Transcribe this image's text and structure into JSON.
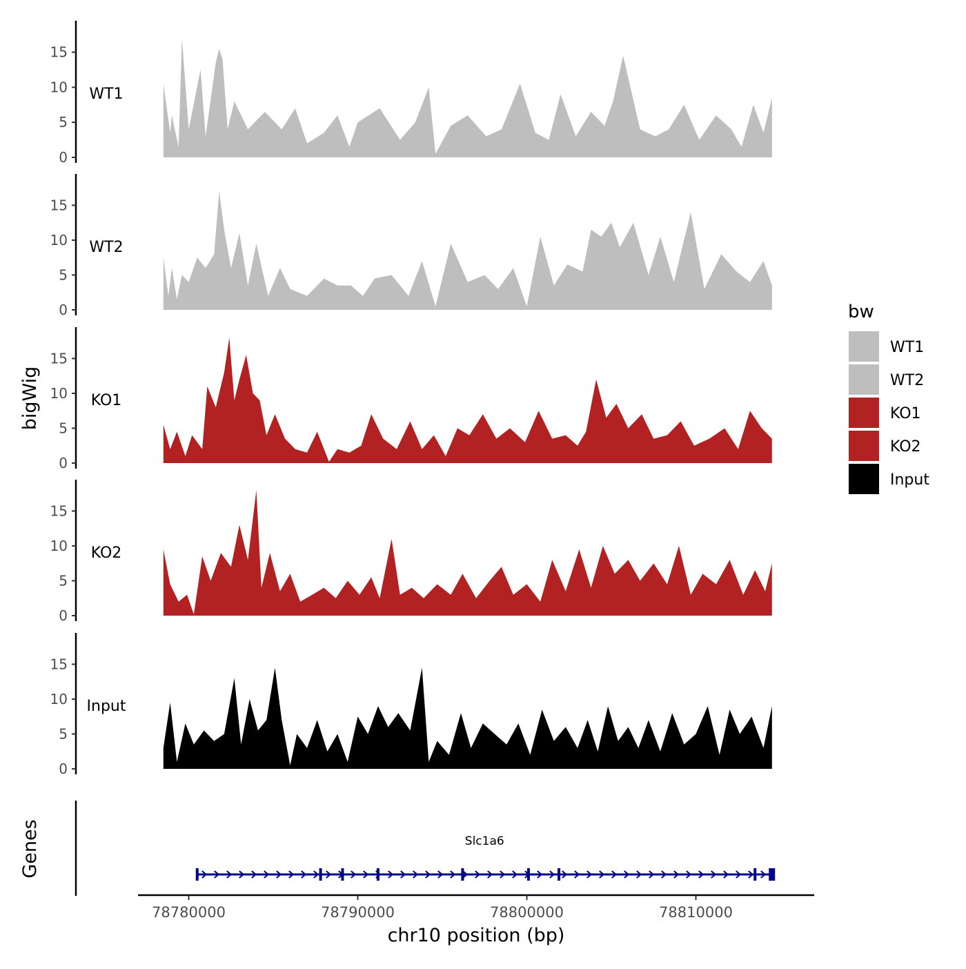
{
  "chart_data": {
    "type": "area",
    "tracks_ylabel": "bigWig",
    "genes_ylabel": "Genes",
    "xlabel": "chr10 position (bp)",
    "xlim": [
      78777000,
      78817000
    ],
    "x_ticks": [
      78780000,
      78790000,
      78800000,
      78810000
    ],
    "x_tick_labels": [
      "78780000",
      "78790000",
      "78800000",
      "78810000"
    ],
    "ylim": [
      0,
      19
    ],
    "y_ticks": [
      0,
      5,
      10,
      15
    ],
    "y_tick_labels": [
      "0",
      "5",
      "10",
      "15"
    ],
    "data_range": [
      78778500,
      78814500
    ],
    "legend": {
      "title": "bw",
      "position": "right",
      "entries": [
        {
          "label": "WT1",
          "color": "#bebebe"
        },
        {
          "label": "WT2",
          "color": "#bebebe"
        },
        {
          "label": "KO1",
          "color": "#b22222"
        },
        {
          "label": "KO2",
          "color": "#b22222"
        },
        {
          "label": "Input",
          "color": "#000000"
        }
      ]
    },
    "series": [
      {
        "name": "WT1",
        "color": "#bebebe",
        "x": [
          78778500,
          78778900,
          78779000,
          78779400,
          78779600,
          78780000,
          78780700,
          78781000,
          78781600,
          78781800,
          78782000,
          78782300,
          78782700,
          78783500,
          78784500,
          78785500,
          78786300,
          78787000,
          78788000,
          78788800,
          78789500,
          78790000,
          78791300,
          78792500,
          78793400,
          78794200,
          78794600,
          78795500,
          78796500,
          78797600,
          78798500,
          78799600,
          78800500,
          78801300,
          78802000,
          78802900,
          78803800,
          78804600,
          78805100,
          78805700,
          78806700,
          78807600,
          78808400,
          78809300,
          78810200,
          78811200,
          78812100,
          78812700,
          78813400,
          78814000,
          78814500
        ],
        "values": [
          10.5,
          3.5,
          6.0,
          1.5,
          17.0,
          4.0,
          12.5,
          3.0,
          13.5,
          15.5,
          14.0,
          4.0,
          8.0,
          4.0,
          6.5,
          4.0,
          7.0,
          2.0,
          3.5,
          6.0,
          1.5,
          5.0,
          7.0,
          2.5,
          5.0,
          10.0,
          0.5,
          4.5,
          6.0,
          3.0,
          4.0,
          10.5,
          3.5,
          2.5,
          9.0,
          3.0,
          6.5,
          4.5,
          8.0,
          14.5,
          4.0,
          3.0,
          4.0,
          7.5,
          2.5,
          6.0,
          4.0,
          1.5,
          7.5,
          3.5,
          8.5
        ]
      },
      {
        "name": "WT2",
        "color": "#bebebe",
        "x": [
          78778500,
          78778800,
          78779000,
          78779300,
          78779600,
          78780000,
          78780500,
          78781000,
          78781500,
          78781800,
          78782100,
          78782500,
          78783000,
          78783500,
          78784000,
          78784700,
          78785400,
          78786000,
          78787000,
          78788000,
          78788800,
          78789600,
          78790300,
          78791000,
          78792000,
          78793000,
          78793800,
          78794600,
          78795500,
          78796500,
          78797500,
          78798300,
          78799200,
          78800000,
          78800800,
          78801600,
          78802400,
          78803300,
          78803800,
          78804400,
          78805000,
          78805500,
          78806300,
          78807200,
          78807900,
          78808700,
          78809700,
          78810500,
          78811500,
          78812400,
          78813200,
          78814000,
          78814500
        ],
        "values": [
          7.5,
          2.0,
          6.0,
          1.5,
          5.0,
          4.0,
          7.5,
          6.0,
          8.0,
          17.0,
          11.5,
          6.0,
          11.0,
          3.5,
          9.5,
          2.0,
          6.0,
          3.0,
          2.0,
          4.5,
          3.5,
          3.5,
          2.0,
          4.5,
          5.0,
          2.0,
          7.0,
          0.5,
          9.5,
          4.0,
          5.0,
          3.0,
          6.0,
          0.5,
          10.5,
          3.5,
          6.5,
          5.5,
          11.5,
          10.5,
          12.5,
          9.0,
          12.5,
          5.0,
          10.5,
          4.0,
          14.0,
          3.0,
          8.0,
          5.5,
          4.0,
          7.0,
          3.5
        ]
      },
      {
        "name": "KO1",
        "color": "#b22222",
        "x": [
          78778500,
          78778900,
          78779300,
          78779800,
          78780200,
          78780800,
          78781100,
          78781600,
          78782100,
          78782400,
          78782700,
          78783000,
          78783400,
          78783800,
          78784200,
          78784600,
          78785100,
          78785700,
          78786300,
          78787000,
          78787600,
          78788300,
          78788800,
          78789500,
          78790200,
          78790800,
          78791500,
          78792300,
          78793100,
          78793800,
          78794500,
          78795200,
          78795900,
          78796600,
          78797400,
          78798200,
          78799000,
          78799900,
          78800700,
          78801500,
          78802300,
          78803000,
          78803500,
          78804100,
          78804700,
          78805300,
          78806000,
          78806800,
          78807500,
          78808300,
          78809100,
          78809900,
          78810800,
          78811700,
          78812500,
          78813200,
          78813900,
          78814500
        ],
        "values": [
          5.5,
          2.0,
          4.5,
          1.0,
          4.0,
          2.0,
          11.0,
          8.0,
          13.0,
          18.0,
          9.0,
          12.0,
          15.5,
          10.0,
          9.0,
          4.0,
          7.0,
          3.5,
          2.0,
          1.5,
          4.5,
          0.2,
          2.0,
          1.5,
          2.5,
          7.0,
          3.5,
          2.0,
          6.0,
          2.0,
          4.0,
          1.0,
          5.0,
          4.0,
          7.0,
          3.5,
          5.0,
          3.0,
          7.5,
          3.5,
          4.0,
          2.5,
          4.5,
          12.0,
          6.5,
          8.5,
          5.0,
          7.0,
          3.5,
          4.0,
          6.0,
          2.5,
          3.5,
          5.0,
          2.0,
          7.5,
          5.0,
          3.5
        ]
      },
      {
        "name": "KO2",
        "color": "#b22222",
        "x": [
          78778500,
          78778900,
          78779400,
          78779900,
          78780300,
          78780800,
          78781300,
          78781900,
          78782500,
          78783000,
          78783500,
          78784000,
          78784300,
          78784800,
          78785400,
          78786000,
          78786600,
          78787300,
          78788000,
          78788700,
          78789400,
          78790100,
          78790800,
          78791300,
          78792000,
          78792500,
          78793200,
          78793900,
          78794700,
          78795500,
          78796200,
          78797000,
          78797800,
          78798500,
          78799200,
          78800000,
          78800800,
          78801500,
          78802300,
          78803100,
          78803800,
          78804500,
          78805200,
          78806000,
          78806700,
          78807500,
          78808300,
          78809000,
          78809700,
          78810400,
          78811200,
          78812000,
          78812800,
          78813500,
          78814100,
          78814500
        ],
        "values": [
          9.5,
          4.5,
          2.0,
          3.0,
          0.2,
          8.5,
          5.0,
          9.0,
          7.0,
          13.0,
          8.0,
          18.0,
          4.0,
          9.0,
          3.5,
          6.0,
          2.0,
          3.0,
          4.0,
          2.5,
          5.0,
          3.0,
          5.5,
          2.5,
          11.0,
          3.0,
          4.0,
          2.5,
          4.5,
          3.0,
          6.0,
          2.5,
          5.0,
          7.0,
          3.0,
          4.5,
          2.0,
          8.0,
          3.5,
          9.5,
          4.0,
          10.0,
          6.0,
          8.0,
          5.0,
          7.5,
          4.5,
          10.0,
          3.0,
          6.0,
          4.5,
          8.0,
          3.0,
          6.5,
          3.5,
          7.5
        ]
      },
      {
        "name": "Input",
        "color": "#000000",
        "x": [
          78778500,
          78778900,
          78779300,
          78779800,
          78780300,
          78780900,
          78781500,
          78782100,
          78782700,
          78783100,
          78783600,
          78784100,
          78784600,
          78785100,
          78785500,
          78786000,
          78786400,
          78787000,
          78787600,
          78788200,
          78788800,
          78789400,
          78790000,
          78790600,
          78791200,
          78791800,
          78792400,
          78793100,
          78793800,
          78794200,
          78794700,
          78795400,
          78796100,
          78796700,
          78797400,
          78798100,
          78798800,
          78799500,
          78800200,
          78800900,
          78801600,
          78802300,
          78803000,
          78803600,
          78804200,
          78804800,
          78805400,
          78806000,
          78806600,
          78807200,
          78807900,
          78808600,
          78809300,
          78810000,
          78810700,
          78811400,
          78812000,
          78812600,
          78813300,
          78814000,
          78814500
        ],
        "values": [
          3.0,
          9.5,
          1.0,
          6.5,
          3.5,
          5.5,
          4.0,
          5.0,
          13.0,
          3.5,
          10.0,
          5.5,
          7.0,
          14.5,
          7.0,
          0.5,
          5.0,
          3.0,
          7.0,
          2.5,
          5.0,
          1.0,
          7.5,
          5.0,
          9.0,
          6.0,
          8.0,
          5.5,
          14.5,
          1.0,
          4.0,
          2.0,
          8.0,
          3.0,
          6.5,
          5.0,
          3.5,
          6.5,
          2.0,
          8.5,
          4.0,
          6.0,
          3.0,
          7.0,
          2.5,
          9.0,
          4.0,
          6.0,
          3.0,
          7.0,
          2.5,
          8.0,
          3.5,
          5.0,
          9.0,
          2.0,
          8.5,
          5.0,
          7.5,
          3.0,
          9.0
        ]
      }
    ],
    "genes": [
      {
        "name": "Slc1a6",
        "start": 78780500,
        "end": 78814500,
        "strand": "+",
        "color": "#00008b",
        "exons": [
          78780500,
          78787800,
          78789100,
          78791200,
          78796200,
          78800100,
          78801900,
          78813500,
          78814500
        ]
      }
    ]
  }
}
